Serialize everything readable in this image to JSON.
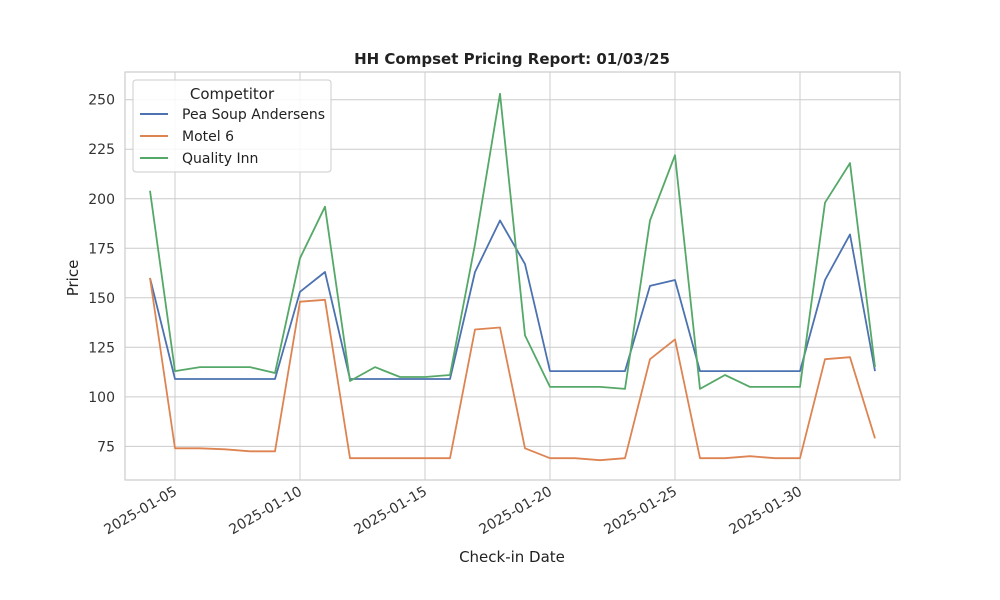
{
  "chart_data": {
    "type": "line",
    "title": "HH Compset Pricing Report: 01/03/25",
    "xlabel": "Check-in Date",
    "ylabel": "Price",
    "x": [
      "2025-01-04",
      "2025-01-05",
      "2025-01-06",
      "2025-01-07",
      "2025-01-08",
      "2025-01-09",
      "2025-01-10",
      "2025-01-11",
      "2025-01-12",
      "2025-01-13",
      "2025-01-14",
      "2025-01-15",
      "2025-01-16",
      "2025-01-17",
      "2025-01-18",
      "2025-01-19",
      "2025-01-20",
      "2025-01-21",
      "2025-01-22",
      "2025-01-23",
      "2025-01-24",
      "2025-01-25",
      "2025-01-26",
      "2025-01-27",
      "2025-01-28",
      "2025-01-29",
      "2025-01-30",
      "2025-01-31",
      "2025-02-01",
      "2025-02-02"
    ],
    "xlim": [
      "2025-01-03",
      "2025-02-03"
    ],
    "ylim": [
      58,
      264
    ],
    "x_ticks": [
      "2025-01-05",
      "2025-01-10",
      "2025-01-15",
      "2025-01-20",
      "2025-01-25",
      "2025-01-30"
    ],
    "y_ticks": [
      75,
      100,
      125,
      150,
      175,
      200,
      225,
      250
    ],
    "grid": true,
    "legend": {
      "title": "Competitor",
      "placement": "top-left"
    },
    "series": [
      {
        "name": "Pea Soup Andersens",
        "color": "#4c72b0",
        "values": [
          160,
          109,
          109,
          109,
          109,
          109,
          153,
          163,
          109,
          109,
          109,
          109,
          109,
          163,
          189,
          167,
          113,
          113,
          113,
          113,
          156,
          159,
          113,
          113,
          113,
          113,
          113,
          159,
          182,
          113
        ]
      },
      {
        "name": "Motel 6",
        "color": "#dd8452",
        "values": [
          160,
          74,
          74,
          73.5,
          72.5,
          72.5,
          148,
          149,
          69,
          69,
          69,
          69,
          69,
          134,
          135,
          74,
          69,
          69,
          68,
          69,
          119,
          129,
          69,
          69,
          70,
          69,
          69,
          119,
          120,
          79
        ]
      },
      {
        "name": "Quality Inn",
        "color": "#55a868",
        "values": [
          204,
          113,
          115,
          115,
          115,
          112,
          170,
          196,
          108,
          115,
          110,
          110,
          111,
          177,
          253,
          131,
          105,
          105,
          105,
          104,
          189,
          222,
          104,
          111,
          105,
          105,
          105,
          198,
          218,
          115
        ]
      }
    ]
  }
}
